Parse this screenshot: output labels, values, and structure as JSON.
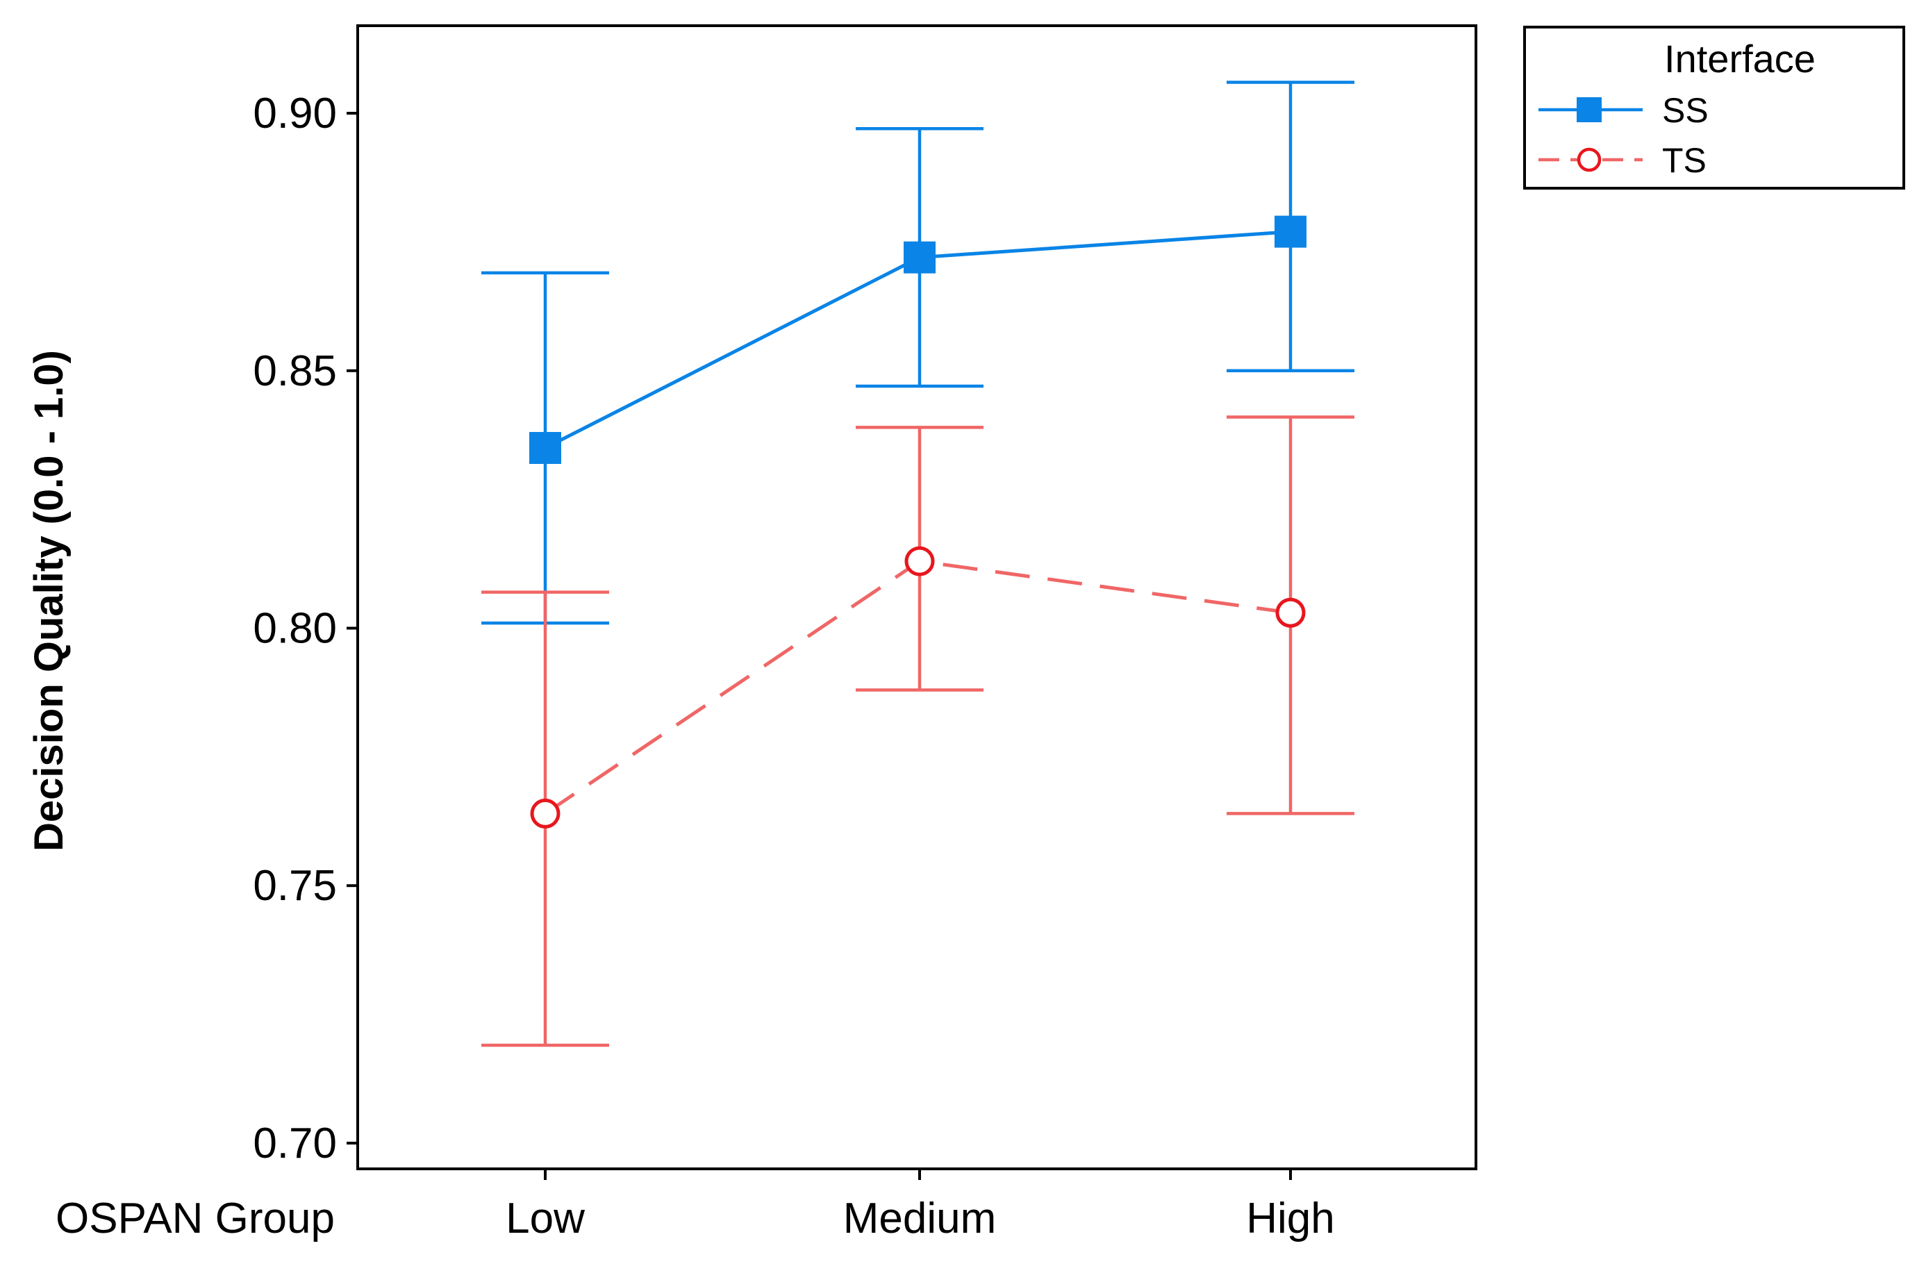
{
  "chart_data": {
    "type": "line",
    "title": "",
    "xlabel": "OSPAN Group",
    "ylabel": "Decision Quality (0.0 - 1.0)",
    "categories": [
      "Low",
      "Medium",
      "High"
    ],
    "ylim": [
      0.695,
      0.917
    ],
    "yticks": [
      0.7,
      0.75,
      0.8,
      0.85,
      0.9
    ],
    "ytick_labels": [
      "0.70",
      "0.75",
      "0.80",
      "0.85",
      "0.90"
    ],
    "grid": false,
    "legend": {
      "title": "Interface",
      "position": "top-right-outside"
    },
    "series": [
      {
        "name": "SS",
        "values": [
          0.835,
          0.872,
          0.877
        ],
        "error_low": [
          0.801,
          0.847,
          0.85
        ],
        "error_high": [
          0.869,
          0.897,
          0.906
        ],
        "color": "#0a84e6",
        "line_style": "solid",
        "marker": "filled-square"
      },
      {
        "name": "TS",
        "values": [
          0.764,
          0.813,
          0.803
        ],
        "error_low": [
          0.719,
          0.788,
          0.764
        ],
        "error_high": [
          0.807,
          0.839,
          0.841
        ],
        "color": "#f06666",
        "marker_color": "#e8161e",
        "line_style": "dashed",
        "marker": "open-circle"
      }
    ]
  }
}
